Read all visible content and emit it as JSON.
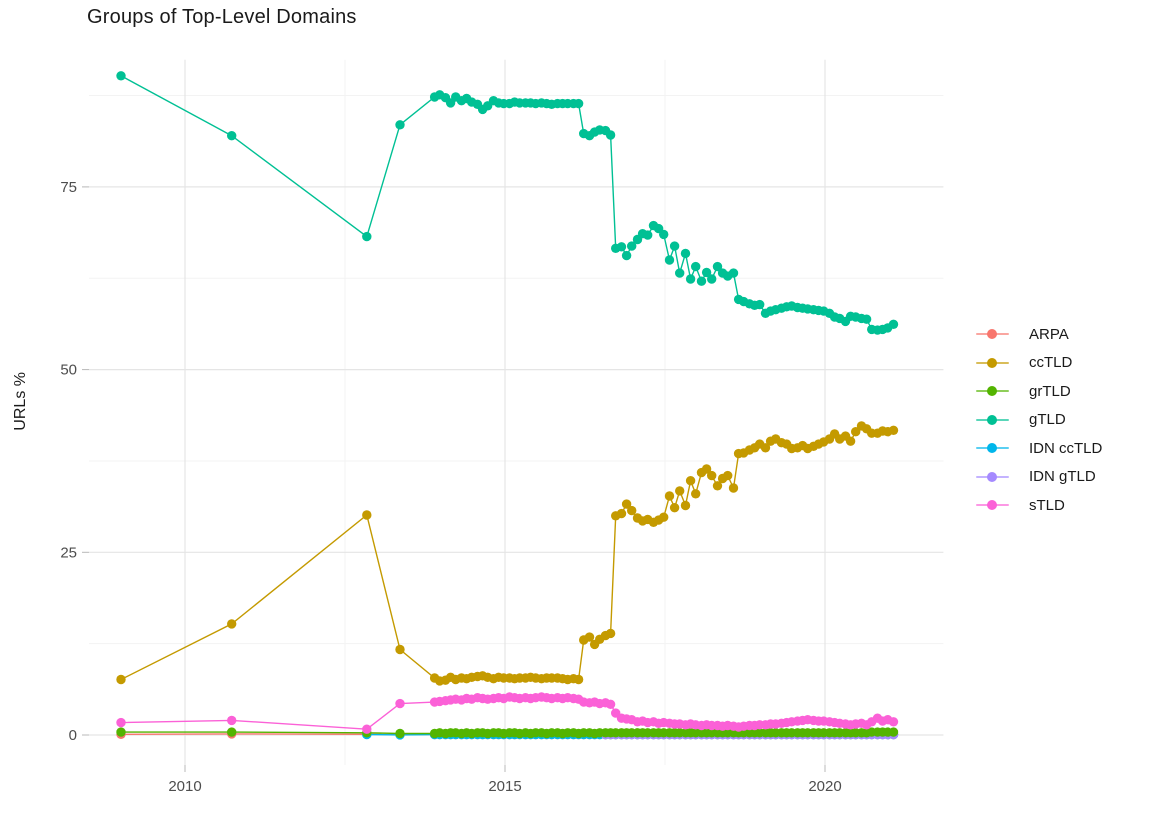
{
  "title": "Groups of Top-Level Domains",
  "chart_data": {
    "type": "line",
    "title": "Groups of Top-Level Domains",
    "xlabel": "",
    "ylabel": "URLs %",
    "x_ticks": [
      2010,
      2015,
      2020
    ],
    "y_ticks": [
      0,
      25,
      50,
      75
    ],
    "x_minor": [
      2012.5,
      2017.5
    ],
    "y_minor": [
      12.5,
      37.5,
      62.5,
      87.5
    ],
    "xlim": [
      2008.5,
      2021.85
    ],
    "ylim": [
      -4.1,
      92.4
    ],
    "grid": true,
    "legend_position": "right",
    "x": [
      2009.0,
      2010.73,
      2012.84,
      2013.36,
      2013.9,
      2013.98,
      2014.07,
      2014.15,
      2014.23,
      2014.32,
      2014.4,
      2014.48,
      2014.57,
      2014.65,
      2014.73,
      2014.82,
      2014.9,
      2014.98,
      2015.07,
      2015.15,
      2015.23,
      2015.32,
      2015.4,
      2015.48,
      2015.57,
      2015.65,
      2015.73,
      2015.82,
      2015.9,
      2015.98,
      2016.07,
      2016.15,
      2016.23,
      2016.32,
      2016.4,
      2016.48,
      2016.57,
      2016.65,
      2016.73,
      2016.82,
      2016.9,
      2016.98,
      2017.07,
      2017.15,
      2017.23,
      2017.32,
      2017.4,
      2017.48,
      2017.57,
      2017.65,
      2017.73,
      2017.82,
      2017.9,
      2017.98,
      2018.07,
      2018.15,
      2018.23,
      2018.32,
      2018.4,
      2018.48,
      2018.57,
      2018.65,
      2018.73,
      2018.82,
      2018.9,
      2018.98,
      2019.07,
      2019.15,
      2019.23,
      2019.32,
      2019.4,
      2019.48,
      2019.57,
      2019.65,
      2019.73,
      2019.82,
      2019.9,
      2019.98,
      2020.07,
      2020.15,
      2020.23,
      2020.32,
      2020.4,
      2020.48,
      2020.57,
      2020.65,
      2020.73,
      2020.82,
      2020.9,
      2020.98,
      2021.07
    ],
    "series": [
      {
        "name": "ARPA",
        "color": "#F8766D",
        "values": [
          0.1,
          0.15,
          0.1,
          0.05,
          0.05,
          0.05,
          0.05,
          0.05,
          0.05,
          0.05,
          0.05,
          0.05,
          0.05,
          0.05,
          0.05,
          0.05,
          0.05,
          0.05,
          0.05,
          0.05,
          0.05,
          0.05,
          0.05,
          0.05,
          0.05,
          0.05,
          0.05,
          0.05,
          0.05,
          0.05,
          0.05,
          0.05,
          0.05,
          0.05,
          0.05,
          0.05,
          0.05,
          0.05,
          0.05,
          0.05,
          0.05,
          0.05,
          0.05,
          0.05,
          0.05,
          0.05,
          0.05,
          0.05,
          0.05,
          0.05,
          0.05,
          0.05,
          0.05,
          0.05,
          0.05,
          0.05,
          0.05,
          0.05,
          0.05,
          0.05,
          0.05,
          0.05,
          0.05,
          0.05,
          0.05,
          0.05,
          0.05,
          0.05,
          0.05,
          0.05,
          0.05,
          0.05,
          0.05,
          0.05,
          0.05,
          0.05,
          0.05,
          0.05,
          0.05,
          0.05,
          0.05,
          0.05,
          0.05,
          0.05,
          0.05,
          0.05,
          0.05,
          0.05,
          0.05,
          0.05,
          0.05
        ]
      },
      {
        "name": "ccTLD",
        "color": "#C49A00",
        "values": [
          7.6,
          15.2,
          30.1,
          11.7,
          7.8,
          7.4,
          7.5,
          7.9,
          7.6,
          7.8,
          7.7,
          7.9,
          8.0,
          8.1,
          7.9,
          7.7,
          7.9,
          7.8,
          7.8,
          7.7,
          7.8,
          7.8,
          7.9,
          7.8,
          7.7,
          7.8,
          7.8,
          7.8,
          7.7,
          7.6,
          7.7,
          7.6,
          13.0,
          13.4,
          12.4,
          13.1,
          13.6,
          13.9,
          30.0,
          30.3,
          31.6,
          30.7,
          29.7,
          29.3,
          29.5,
          29.1,
          29.4,
          29.8,
          32.7,
          31.1,
          33.4,
          31.4,
          34.8,
          33.0,
          35.9,
          36.4,
          35.5,
          34.1,
          35.1,
          35.5,
          33.8,
          38.5,
          38.6,
          39.0,
          39.3,
          39.8,
          39.3,
          40.2,
          40.5,
          40.0,
          39.8,
          39.2,
          39.3,
          39.6,
          39.2,
          39.5,
          39.8,
          40.1,
          40.5,
          41.2,
          40.5,
          40.9,
          40.2,
          41.5,
          42.3,
          41.9,
          41.3,
          41.3,
          41.6,
          41.5,
          41.7
        ]
      },
      {
        "name": "grTLD",
        "color": "#53B400",
        "values": [
          0.4,
          0.4,
          0.3,
          0.2,
          0.2,
          0.3,
          0.2,
          0.3,
          0.3,
          0.2,
          0.3,
          0.2,
          0.3,
          0.3,
          0.2,
          0.3,
          0.3,
          0.2,
          0.3,
          0.3,
          0.2,
          0.3,
          0.2,
          0.3,
          0.3,
          0.2,
          0.3,
          0.3,
          0.2,
          0.3,
          0.3,
          0.2,
          0.3,
          0.3,
          0.2,
          0.3,
          0.3,
          0.3,
          0.3,
          0.3,
          0.3,
          0.3,
          0.3,
          0.3,
          0.3,
          0.3,
          0.3,
          0.3,
          0.3,
          0.3,
          0.3,
          0.3,
          0.3,
          0.3,
          0.3,
          0.3,
          0.3,
          0.3,
          0.3,
          0.3,
          0.3,
          0.3,
          0.3,
          0.3,
          0.3,
          0.3,
          0.3,
          0.3,
          0.3,
          0.3,
          0.3,
          0.3,
          0.3,
          0.3,
          0.3,
          0.3,
          0.3,
          0.3,
          0.3,
          0.3,
          0.3,
          0.3,
          0.3,
          0.3,
          0.3,
          0.3,
          0.4,
          0.4,
          0.4,
          0.4,
          0.4
        ]
      },
      {
        "name": "gTLD",
        "color": "#00C094",
        "values": [
          90.2,
          82.0,
          68.2,
          83.5,
          87.3,
          87.6,
          87.2,
          86.5,
          87.3,
          86.8,
          87.1,
          86.6,
          86.3,
          85.6,
          86.1,
          86.8,
          86.5,
          86.4,
          86.4,
          86.6,
          86.5,
          86.5,
          86.5,
          86.4,
          86.5,
          86.4,
          86.3,
          86.4,
          86.4,
          86.4,
          86.4,
          86.4,
          82.3,
          82.0,
          82.5,
          82.8,
          82.7,
          82.1,
          66.6,
          66.8,
          65.6,
          66.9,
          67.8,
          68.6,
          68.4,
          69.7,
          69.3,
          68.5,
          65.0,
          66.9,
          63.2,
          65.9,
          62.4,
          64.1,
          62.1,
          63.3,
          62.4,
          64.1,
          63.2,
          62.8,
          63.2,
          59.6,
          59.3,
          59.0,
          58.8,
          58.9,
          57.7,
          58.0,
          58.2,
          58.4,
          58.6,
          58.7,
          58.5,
          58.4,
          58.3,
          58.2,
          58.1,
          58.0,
          57.7,
          57.2,
          57.0,
          56.6,
          57.3,
          57.2,
          57.0,
          56.9,
          55.5,
          55.4,
          55.5,
          55.7,
          56.2
        ]
      },
      {
        "name": "IDN ccTLD",
        "color": "#00B6EB",
        "values": [
          null,
          null,
          0.05,
          0.02,
          0.05,
          0.05,
          0.05,
          0.05,
          0.05,
          0.05,
          0.05,
          0.05,
          0.05,
          0.05,
          0.05,
          0.05,
          0.05,
          0.05,
          0.05,
          0.05,
          0.05,
          0.05,
          0.05,
          0.05,
          0.05,
          0.05,
          0.05,
          0.05,
          0.05,
          0.05,
          0.05,
          0.05,
          0.05,
          0.05,
          0.05,
          0.05,
          0.05,
          0.05,
          0.05,
          0.05,
          0.05,
          0.05,
          0.05,
          0.05,
          0.05,
          0.05,
          0.05,
          0.05,
          0.05,
          0.05,
          0.05,
          0.05,
          0.05,
          0.05,
          0.05,
          0.05,
          0.05,
          0.05,
          0.05,
          0.05,
          0.05,
          0.05,
          0.05,
          0.05,
          0.05,
          0.05,
          0.05,
          0.05,
          0.05,
          0.05,
          0.05,
          0.05,
          0.05,
          0.05,
          0.05,
          0.05,
          0.05,
          0.05,
          0.05,
          0.05,
          0.05,
          0.05,
          0.05,
          0.05,
          0.05,
          0.05,
          0.05,
          0.05,
          0.05,
          0.05,
          0.05
        ]
      },
      {
        "name": "IDN gTLD",
        "color": "#A58AFF",
        "values": [
          null,
          null,
          null,
          null,
          null,
          null,
          null,
          null,
          null,
          null,
          null,
          null,
          null,
          null,
          null,
          null,
          null,
          null,
          null,
          null,
          null,
          null,
          null,
          null,
          null,
          null,
          null,
          null,
          null,
          null,
          null,
          null,
          null,
          null,
          null,
          null,
          0.05,
          0.05,
          0.05,
          0.05,
          0.05,
          0.05,
          0.05,
          0.05,
          0.05,
          0.05,
          0.05,
          0.05,
          0.05,
          0.05,
          0.05,
          0.05,
          0.05,
          0.05,
          0.05,
          0.05,
          0.05,
          0.05,
          0.05,
          0.05,
          0.05,
          0.05,
          0.05,
          0.05,
          0.05,
          0.05,
          0.05,
          0.05,
          0.05,
          0.05,
          0.05,
          0.05,
          0.05,
          0.05,
          0.05,
          0.05,
          0.05,
          0.05,
          0.05,
          0.05,
          0.05,
          0.05,
          0.05,
          0.05,
          0.05,
          0.05,
          0.05,
          0.05,
          0.05,
          0.05,
          0.05
        ]
      },
      {
        "name": "sTLD",
        "color": "#FB61D7",
        "values": [
          1.7,
          2.0,
          0.8,
          4.3,
          4.5,
          4.6,
          4.7,
          4.8,
          4.9,
          4.8,
          5.0,
          4.9,
          5.1,
          5.0,
          4.9,
          5.0,
          5.1,
          5.0,
          5.2,
          5.1,
          5.0,
          5.1,
          5.0,
          5.1,
          5.2,
          5.1,
          5.0,
          5.1,
          5.0,
          5.1,
          5.0,
          4.9,
          4.5,
          4.4,
          4.5,
          4.3,
          4.4,
          4.2,
          3.0,
          2.3,
          2.2,
          2.1,
          1.8,
          1.9,
          1.7,
          1.8,
          1.6,
          1.7,
          1.6,
          1.5,
          1.5,
          1.4,
          1.5,
          1.4,
          1.3,
          1.4,
          1.3,
          1.3,
          1.2,
          1.3,
          1.2,
          1.1,
          1.2,
          1.3,
          1.3,
          1.4,
          1.4,
          1.5,
          1.5,
          1.6,
          1.7,
          1.8,
          1.9,
          2.0,
          2.1,
          2.0,
          1.9,
          1.9,
          1.8,
          1.7,
          1.6,
          1.5,
          1.4,
          1.5,
          1.6,
          1.4,
          1.8,
          2.3,
          1.9,
          2.1,
          1.8
        ]
      }
    ]
  },
  "legend": {
    "items": [
      {
        "label": "ARPA"
      },
      {
        "label": "ccTLD"
      },
      {
        "label": "grTLD"
      },
      {
        "label": "gTLD"
      },
      {
        "label": "IDN ccTLD"
      },
      {
        "label": "IDN gTLD"
      },
      {
        "label": "sTLD"
      }
    ]
  }
}
